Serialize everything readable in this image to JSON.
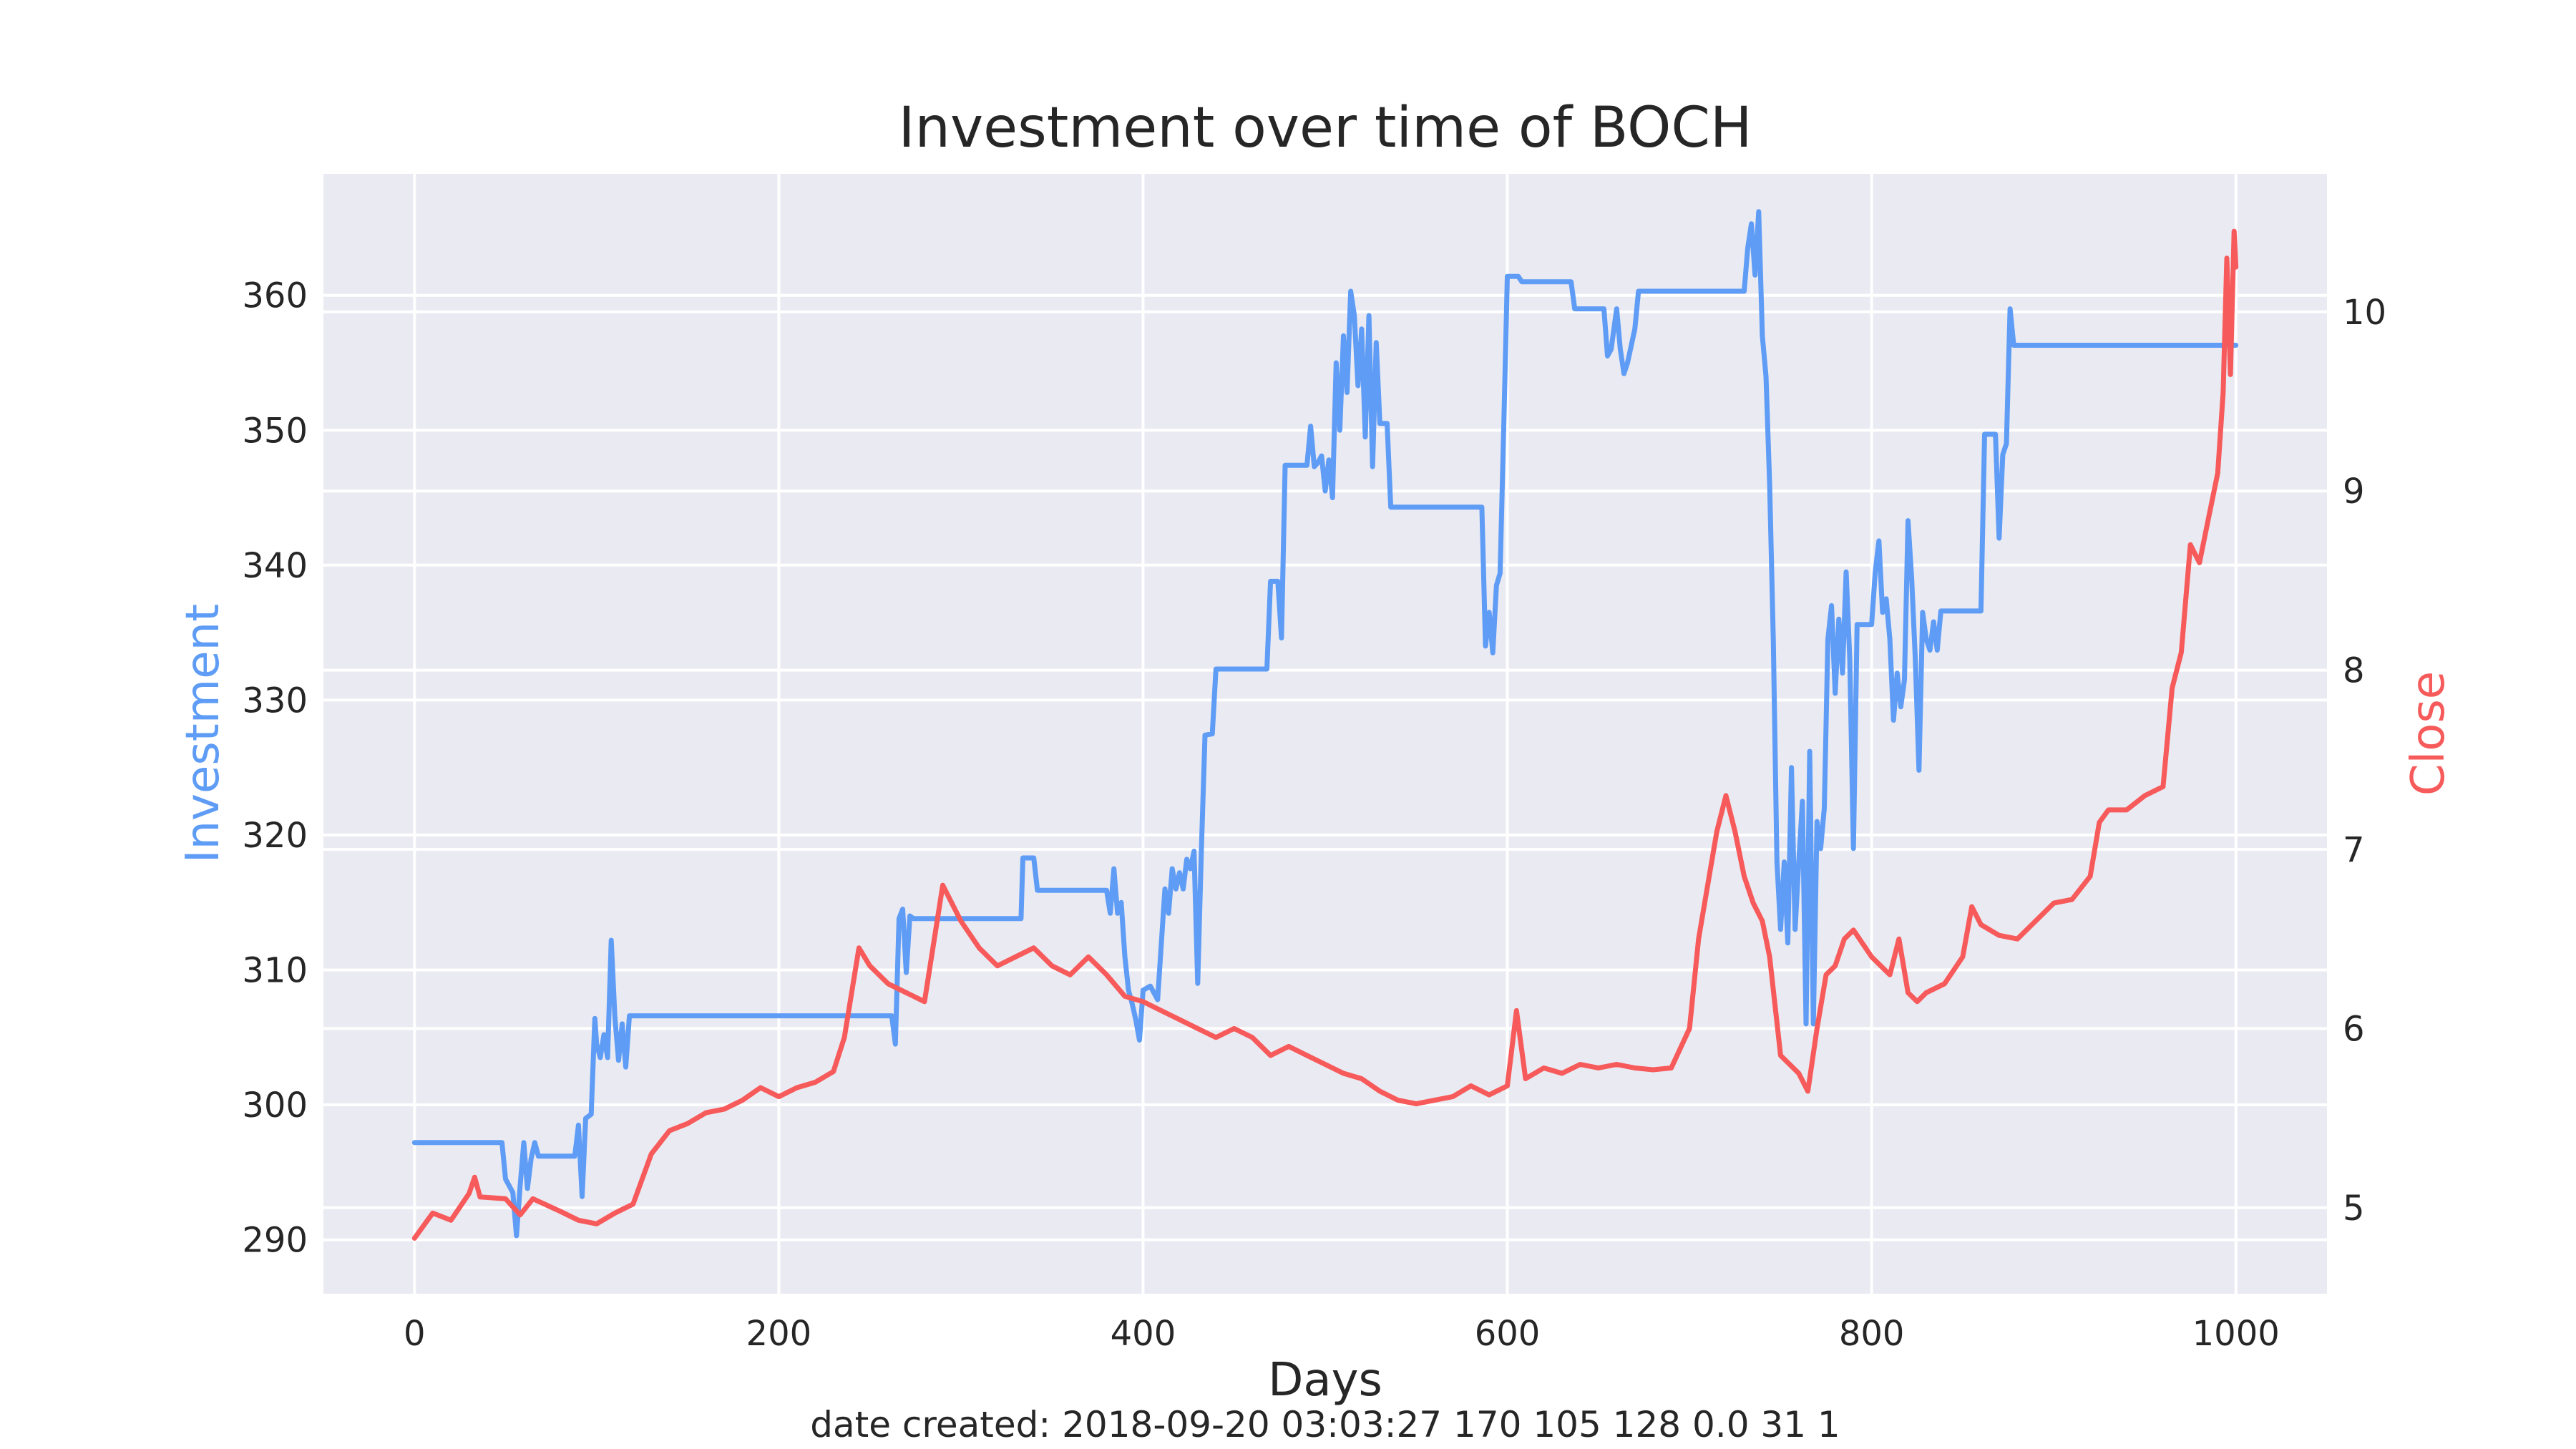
{
  "chart_data": {
    "type": "line",
    "title": "Investment over time of BOCH",
    "xlabel": "Days",
    "ylabel_left": "Investment",
    "ylabel_right": "Close",
    "footer": "date created: 2018-09-20 03:03:27 170 105 128 0.0 31 1",
    "xlim": [
      -50,
      1050
    ],
    "ylim_left": [
      286,
      369
    ],
    "ylim_right": [
      4.52,
      10.77
    ],
    "xticks": [
      0,
      200,
      400,
      600,
      800,
      1000
    ],
    "yticks_left": [
      290,
      300,
      310,
      320,
      330,
      340,
      350,
      360
    ],
    "yticks_right": [
      5,
      6,
      7,
      8,
      9,
      10
    ],
    "grid": true,
    "colors": {
      "background": "#eaeaf2",
      "grid": "#ffffff",
      "investment": "#5e9cf5",
      "close": "#f75a5a",
      "text": "#262626"
    },
    "series": [
      {
        "name": "Investment",
        "axis": "left",
        "points": [
          [
            0,
            297.2
          ],
          [
            48,
            297.2
          ],
          [
            50,
            294.5
          ],
          [
            54,
            293.5
          ],
          [
            56,
            290.3
          ],
          [
            58,
            294
          ],
          [
            60,
            297.2
          ],
          [
            62,
            293.8
          ],
          [
            64,
            296
          ],
          [
            66,
            297.2
          ],
          [
            68,
            296.2
          ],
          [
            88,
            296.2
          ],
          [
            90,
            298.5
          ],
          [
            92,
            293.2
          ],
          [
            94,
            299
          ],
          [
            97,
            299.3
          ],
          [
            99,
            306.4
          ],
          [
            100,
            304.5
          ],
          [
            102,
            303.5
          ],
          [
            104,
            305.2
          ],
          [
            106,
            303.5
          ],
          [
            108,
            312.2
          ],
          [
            110,
            306.5
          ],
          [
            112,
            303.3
          ],
          [
            114,
            306
          ],
          [
            116,
            302.8
          ],
          [
            118,
            306.6
          ],
          [
            262,
            306.6
          ],
          [
            264,
            304.5
          ],
          [
            266,
            313.8
          ],
          [
            268,
            314.5
          ],
          [
            270,
            309.8
          ],
          [
            272,
            314
          ],
          [
            274,
            313.8
          ],
          [
            333,
            313.8
          ],
          [
            334,
            318.3
          ],
          [
            340,
            318.3
          ],
          [
            342,
            315.9
          ],
          [
            380,
            315.9
          ],
          [
            382,
            314.2
          ],
          [
            384,
            317.5
          ],
          [
            386,
            314.2
          ],
          [
            388,
            315
          ],
          [
            390,
            311
          ],
          [
            392,
            308.5
          ],
          [
            394,
            307.5
          ],
          [
            396,
            306.3
          ],
          [
            398,
            304.8
          ],
          [
            400,
            308.5
          ],
          [
            404,
            308.8
          ],
          [
            408,
            307.8
          ],
          [
            412,
            316
          ],
          [
            414,
            314.2
          ],
          [
            416,
            317.5
          ],
          [
            418,
            316
          ],
          [
            420,
            317.2
          ],
          [
            422,
            316
          ],
          [
            424,
            318.2
          ],
          [
            426,
            317.5
          ],
          [
            428,
            318.8
          ],
          [
            430,
            309
          ],
          [
            432,
            318.8
          ],
          [
            434,
            327.4
          ],
          [
            438,
            327.5
          ],
          [
            440,
            332.3
          ],
          [
            468,
            332.3
          ],
          [
            470,
            338.8
          ],
          [
            474,
            338.8
          ],
          [
            476,
            334.6
          ],
          [
            478,
            347.4
          ],
          [
            490,
            347.4
          ],
          [
            492,
            350.3
          ],
          [
            494,
            347.3
          ],
          [
            496,
            347.6
          ],
          [
            498,
            348.1
          ],
          [
            500,
            345.5
          ],
          [
            502,
            347.8
          ],
          [
            504,
            345
          ],
          [
            506,
            355
          ],
          [
            508,
            350
          ],
          [
            510,
            357
          ],
          [
            512,
            352.8
          ],
          [
            514,
            360.3
          ],
          [
            516,
            358.5
          ],
          [
            518,
            353.3
          ],
          [
            520,
            357.5
          ],
          [
            522,
            349.5
          ],
          [
            524,
            358.5
          ],
          [
            526,
            347.3
          ],
          [
            528,
            356.5
          ],
          [
            530,
            350.5
          ],
          [
            534,
            350.5
          ],
          [
            536,
            344.3
          ],
          [
            586,
            344.3
          ],
          [
            588,
            334
          ],
          [
            590,
            336.5
          ],
          [
            592,
            333.5
          ],
          [
            594,
            338.5
          ],
          [
            596,
            339.4
          ],
          [
            598,
            350.2
          ],
          [
            600,
            361.4
          ],
          [
            606,
            361.4
          ],
          [
            608,
            361
          ],
          [
            635,
            361
          ],
          [
            637,
            359
          ],
          [
            653,
            359
          ],
          [
            655,
            355.5
          ],
          [
            657,
            356
          ],
          [
            660,
            359
          ],
          [
            662,
            356
          ],
          [
            664,
            354.2
          ],
          [
            666,
            355
          ],
          [
            670,
            357.5
          ],
          [
            672,
            360.3
          ],
          [
            730,
            360.3
          ],
          [
            732,
            363.5
          ],
          [
            734,
            365.3
          ],
          [
            736,
            361.5
          ],
          [
            738,
            366.2
          ],
          [
            740,
            357
          ],
          [
            742,
            354
          ],
          [
            744,
            346
          ],
          [
            746,
            334.5
          ],
          [
            748,
            318
          ],
          [
            750,
            313
          ],
          [
            752,
            318
          ],
          [
            754,
            312
          ],
          [
            756,
            325
          ],
          [
            758,
            313
          ],
          [
            760,
            318
          ],
          [
            762,
            322.5
          ],
          [
            764,
            306
          ],
          [
            766,
            326.2
          ],
          [
            768,
            306
          ],
          [
            770,
            321
          ],
          [
            772,
            319
          ],
          [
            774,
            322
          ],
          [
            776,
            334.5
          ],
          [
            778,
            337
          ],
          [
            780,
            330.5
          ],
          [
            782,
            336
          ],
          [
            784,
            332
          ],
          [
            786,
            339.5
          ],
          [
            788,
            333
          ],
          [
            790,
            319
          ],
          [
            792,
            335.6
          ],
          [
            800,
            335.6
          ],
          [
            802,
            339.5
          ],
          [
            804,
            341.8
          ],
          [
            806,
            336.5
          ],
          [
            808,
            337.5
          ],
          [
            810,
            334.5
          ],
          [
            812,
            328.5
          ],
          [
            814,
            332
          ],
          [
            816,
            329.5
          ],
          [
            818,
            331.5
          ],
          [
            820,
            343.3
          ],
          [
            822,
            339
          ],
          [
            824,
            333
          ],
          [
            826,
            324.8
          ],
          [
            828,
            336.5
          ],
          [
            830,
            334.5
          ],
          [
            832,
            333.7
          ],
          [
            834,
            335.8
          ],
          [
            836,
            333.7
          ],
          [
            838,
            336.6
          ],
          [
            860,
            336.6
          ],
          [
            862,
            349.7
          ],
          [
            868,
            349.7
          ],
          [
            870,
            342
          ],
          [
            872,
            348.2
          ],
          [
            874,
            349
          ],
          [
            876,
            359
          ],
          [
            878,
            356.3
          ],
          [
            1000,
            356.3
          ]
        ]
      },
      {
        "name": "Close",
        "axis": "right",
        "points": [
          [
            0,
            4.83
          ],
          [
            10,
            4.97
          ],
          [
            20,
            4.93
          ],
          [
            30,
            5.08
          ],
          [
            33,
            5.17
          ],
          [
            36,
            5.06
          ],
          [
            50,
            5.05
          ],
          [
            58,
            4.96
          ],
          [
            65,
            5.05
          ],
          [
            80,
            4.98
          ],
          [
            90,
            4.93
          ],
          [
            100,
            4.91
          ],
          [
            110,
            4.97
          ],
          [
            120,
            5.02
          ],
          [
            130,
            5.3
          ],
          [
            140,
            5.43
          ],
          [
            150,
            5.47
          ],
          [
            160,
            5.53
          ],
          [
            170,
            5.55
          ],
          [
            180,
            5.6
          ],
          [
            190,
            5.67
          ],
          [
            200,
            5.62
          ],
          [
            210,
            5.67
          ],
          [
            220,
            5.7
          ],
          [
            230,
            5.76
          ],
          [
            236,
            5.95
          ],
          [
            240,
            6.2
          ],
          [
            244,
            6.45
          ],
          [
            250,
            6.35
          ],
          [
            260,
            6.25
          ],
          [
            270,
            6.2
          ],
          [
            280,
            6.15
          ],
          [
            290,
            6.8
          ],
          [
            300,
            6.6
          ],
          [
            310,
            6.45
          ],
          [
            320,
            6.35
          ],
          [
            330,
            6.4
          ],
          [
            340,
            6.45
          ],
          [
            350,
            6.35
          ],
          [
            360,
            6.3
          ],
          [
            370,
            6.4
          ],
          [
            380,
            6.3
          ],
          [
            390,
            6.18
          ],
          [
            400,
            6.15
          ],
          [
            410,
            6.1
          ],
          [
            420,
            6.05
          ],
          [
            430,
            6
          ],
          [
            440,
            5.95
          ],
          [
            450,
            6
          ],
          [
            460,
            5.95
          ],
          [
            470,
            5.85
          ],
          [
            480,
            5.9
          ],
          [
            490,
            5.85
          ],
          [
            500,
            5.8
          ],
          [
            510,
            5.75
          ],
          [
            520,
            5.72
          ],
          [
            530,
            5.65
          ],
          [
            540,
            5.6
          ],
          [
            550,
            5.58
          ],
          [
            560,
            5.6
          ],
          [
            570,
            5.62
          ],
          [
            580,
            5.68
          ],
          [
            590,
            5.63
          ],
          [
            600,
            5.68
          ],
          [
            605,
            6.1
          ],
          [
            610,
            5.72
          ],
          [
            620,
            5.78
          ],
          [
            630,
            5.75
          ],
          [
            640,
            5.8
          ],
          [
            650,
            5.78
          ],
          [
            660,
            5.8
          ],
          [
            670,
            5.78
          ],
          [
            680,
            5.77
          ],
          [
            690,
            5.78
          ],
          [
            700,
            6
          ],
          [
            705,
            6.5
          ],
          [
            710,
            6.8
          ],
          [
            715,
            7.1
          ],
          [
            720,
            7.3
          ],
          [
            725,
            7.1
          ],
          [
            730,
            6.85
          ],
          [
            735,
            6.7
          ],
          [
            740,
            6.6
          ],
          [
            744,
            6.4
          ],
          [
            750,
            5.85
          ],
          [
            755,
            5.8
          ],
          [
            760,
            5.75
          ],
          [
            765,
            5.65
          ],
          [
            770,
            6.0
          ],
          [
            775,
            6.3
          ],
          [
            780,
            6.35
          ],
          [
            785,
            6.5
          ],
          [
            790,
            6.55
          ],
          [
            800,
            6.4
          ],
          [
            810,
            6.3
          ],
          [
            815,
            6.5
          ],
          [
            820,
            6.2
          ],
          [
            825,
            6.15
          ],
          [
            830,
            6.2
          ],
          [
            840,
            6.25
          ],
          [
            850,
            6.4
          ],
          [
            855,
            6.68
          ],
          [
            860,
            6.58
          ],
          [
            870,
            6.52
          ],
          [
            880,
            6.5
          ],
          [
            890,
            6.6
          ],
          [
            900,
            6.7
          ],
          [
            910,
            6.72
          ],
          [
            920,
            6.85
          ],
          [
            925,
            7.15
          ],
          [
            930,
            7.22
          ],
          [
            940,
            7.22
          ],
          [
            950,
            7.3
          ],
          [
            960,
            7.35
          ],
          [
            965,
            7.9
          ],
          [
            970,
            8.1
          ],
          [
            975,
            8.7
          ],
          [
            980,
            8.6
          ],
          [
            985,
            8.85
          ],
          [
            990,
            9.1
          ],
          [
            993,
            9.55
          ],
          [
            995,
            10.3
          ],
          [
            997,
            9.65
          ],
          [
            999,
            10.45
          ],
          [
            1000,
            10.25
          ]
        ]
      }
    ]
  }
}
